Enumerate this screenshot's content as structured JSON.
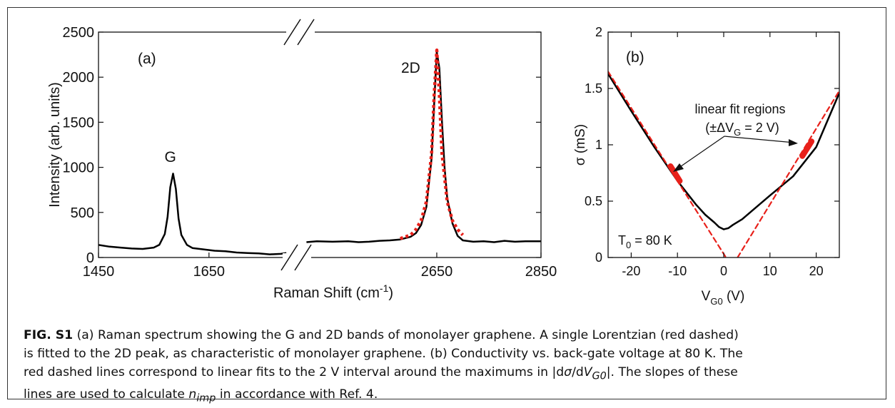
{
  "chart_data": [
    {
      "id": "a",
      "type": "line",
      "panel_label": "(a)",
      "xlabel": "Raman Shift (cm",
      "xlabel_sup": "-1",
      "xlabel_close": ")",
      "ylabel": "Intensity (arb. units)",
      "ylim": [
        0,
        2500
      ],
      "yticks": [
        0,
        500,
        1000,
        1500,
        2000,
        2500
      ],
      "axis_break": {
        "from": 1800,
        "to": 2400
      },
      "xticks": [
        1450,
        1650,
        2650,
        2850
      ],
      "annotations": [
        {
          "text": "G",
          "x": 1580,
          "y": 1060
        },
        {
          "text": "2D",
          "x": 2600,
          "y": 2050
        }
      ],
      "series": [
        {
          "style": "solid",
          "color": "#000000",
          "segments": [
            {
              "x": [
                1450,
                1470,
                1490,
                1510,
                1530,
                1550,
                1560,
                1570,
                1575,
                1580,
                1585,
                1590,
                1595,
                1600,
                1610,
                1620,
                1640,
                1660,
                1680,
                1700,
                1720,
                1740,
                1760,
                1780,
                1790
              ],
              "y": [
                140,
                120,
                110,
                100,
                95,
                110,
                140,
                260,
                450,
                780,
                930,
                760,
                430,
                250,
                140,
                105,
                90,
                75,
                70,
                55,
                50,
                45,
                35,
                40,
                50
              ]
            },
            {
              "x": [
                2400,
                2420,
                2450,
                2480,
                2500,
                2520,
                2540,
                2560,
                2580,
                2600,
                2610,
                2620,
                2630,
                2640,
                2645,
                2650,
                2655,
                2660,
                2665,
                2670,
                2680,
                2690,
                2700,
                2720,
                2740,
                2760,
                2780,
                2800,
                2820,
                2850
              ],
              "y": [
                170,
                180,
                175,
                180,
                170,
                175,
                185,
                190,
                200,
                230,
                270,
                360,
                560,
                1100,
                1700,
                2280,
                2100,
                1500,
                1000,
                660,
                380,
                240,
                190,
                175,
                180,
                170,
                185,
                175,
                180,
                180
              ]
            }
          ]
        },
        {
          "style": "dashed",
          "color": "#e8201a",
          "segments": [
            {
              "x": [
                2580,
                2600,
                2610,
                2620,
                2630,
                2640,
                2645,
                2650,
                2655,
                2660,
                2670,
                2680,
                2690,
                2700
              ],
              "y": [
                210,
                250,
                310,
                410,
                620,
                1150,
                1800,
                2300,
                1800,
                1150,
                620,
                410,
                310,
                250
              ]
            }
          ]
        }
      ]
    },
    {
      "id": "b",
      "type": "line",
      "panel_label": "(b)",
      "xlabel": "V",
      "xlabel_sub": "G0",
      "xlabel_close": " (V)",
      "ylabel": "σ (mS)",
      "xlim": [
        -25,
        25
      ],
      "ylim": [
        0,
        2
      ],
      "xticks": [
        -20,
        -10,
        0,
        10,
        20
      ],
      "yticks": [
        0,
        0.5,
        1,
        1.5,
        2
      ],
      "annotation_title": "linear fit regions",
      "annotation_eq_pre": "(±ΔV",
      "annotation_eq_sub": "G",
      "annotation_eq_post": " = 2 V)",
      "temp_label_pre": "T",
      "temp_label_sub": "0",
      "temp_label_post": " = 80 K",
      "series": [
        {
          "style": "solid",
          "color": "#000000",
          "x": [
            -25,
            -20,
            -15,
            -10,
            -6,
            -4,
            -2,
            -1,
            0,
            1,
            2,
            4,
            6,
            10,
            15,
            20,
            25
          ],
          "y": [
            1.63,
            1.3,
            0.98,
            0.68,
            0.47,
            0.38,
            0.31,
            0.27,
            0.25,
            0.26,
            0.29,
            0.34,
            0.41,
            0.55,
            0.72,
            0.98,
            1.46
          ]
        },
        {
          "style": "dashed",
          "color": "#e8201a",
          "x": [
            -25,
            0.5
          ],
          "y": [
            1.65,
            0
          ]
        },
        {
          "style": "dashed",
          "color": "#e8201a",
          "x": [
            3,
            25
          ],
          "y": [
            0,
            1.48
          ]
        },
        {
          "style": "thick",
          "color": "#e8201a",
          "x": [
            -11.5,
            -9.5
          ],
          "y": [
            0.81,
            0.68
          ]
        },
        {
          "style": "thick",
          "color": "#e8201a",
          "x": [
            17,
            19
          ],
          "y": [
            0.9,
            1.03
          ]
        }
      ]
    }
  ],
  "caption": {
    "fig_label": "FIG. S1",
    "line1": " (a) Raman spectrum showing the G and 2D bands of monolayer graphene. A single Lorentzian (red dashed)",
    "line2": "is fitted to the 2D peak, as characteristic of monolayer graphene. (b) Conductivity vs. back-gate voltage at 80 K. The",
    "line3_pre": "red dashed lines correspond to linear fits to the 2 V interval around the maximums in |d",
    "line3_sigma": "σ",
    "line3_mid": "/d",
    "line3_v": "V",
    "line3_sub": "G0",
    "line3_post": "|. The slopes of these",
    "line4_pre": "lines are used to calculate ",
    "line4_n": "n",
    "line4_sub": "imp",
    "line4_post": " in accordance with Ref. 4."
  }
}
